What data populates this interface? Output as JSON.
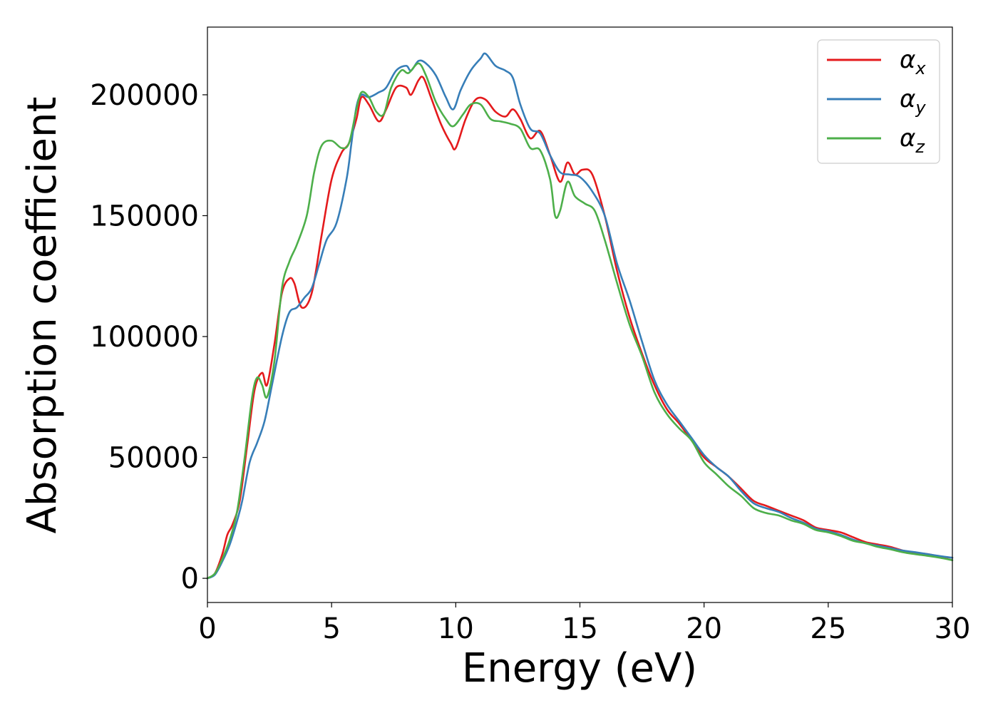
{
  "chart_data": {
    "type": "line",
    "xlabel": "Energy (eV)",
    "ylabel": "Absorption coefficient",
    "xlim": [
      0,
      30
    ],
    "ylim": [
      -10000,
      228000
    ],
    "xticks": [
      0,
      5,
      10,
      15,
      20,
      25,
      30
    ],
    "xtick_labels": [
      "0",
      "5",
      "10",
      "15",
      "20",
      "25",
      "30"
    ],
    "yticks": [
      0,
      50000,
      100000,
      150000,
      200000
    ],
    "ytick_labels": [
      "0",
      "50000",
      "100000",
      "150000",
      "200000"
    ],
    "grid": false,
    "legend_position": "top-right",
    "series": [
      {
        "name": "αx",
        "legend_base": "α",
        "legend_sub": "x",
        "color": "#e41a1c",
        "points": [
          [
            0,
            0
          ],
          [
            0.3,
            2000
          ],
          [
            0.6,
            10000
          ],
          [
            0.8,
            18000
          ],
          [
            1.0,
            22000
          ],
          [
            1.3,
            32000
          ],
          [
            1.6,
            55000
          ],
          [
            1.9,
            78000
          ],
          [
            2.2,
            85000
          ],
          [
            2.4,
            80000
          ],
          [
            2.7,
            97000
          ],
          [
            3.0,
            118000
          ],
          [
            3.3,
            124000
          ],
          [
            3.5,
            122000
          ],
          [
            3.8,
            112000
          ],
          [
            4.2,
            118000
          ],
          [
            4.6,
            142000
          ],
          [
            5.0,
            165000
          ],
          [
            5.4,
            176000
          ],
          [
            5.7,
            180000
          ],
          [
            6.0,
            190000
          ],
          [
            6.2,
            199000
          ],
          [
            6.5,
            196000
          ],
          [
            6.9,
            189000
          ],
          [
            7.2,
            194000
          ],
          [
            7.6,
            203000
          ],
          [
            8.0,
            203000
          ],
          [
            8.2,
            200000
          ],
          [
            8.5,
            206000
          ],
          [
            8.7,
            207000
          ],
          [
            9.0,
            199000
          ],
          [
            9.4,
            188000
          ],
          [
            9.8,
            180000
          ],
          [
            10.0,
            178000
          ],
          [
            10.4,
            190000
          ],
          [
            10.8,
            198000
          ],
          [
            11.2,
            198000
          ],
          [
            11.6,
            193000
          ],
          [
            12.0,
            191000
          ],
          [
            12.3,
            194000
          ],
          [
            12.6,
            190000
          ],
          [
            13.0,
            182000
          ],
          [
            13.4,
            185000
          ],
          [
            13.8,
            175000
          ],
          [
            14.2,
            164000
          ],
          [
            14.5,
            172000
          ],
          [
            14.8,
            167000
          ],
          [
            15.1,
            169000
          ],
          [
            15.5,
            167000
          ],
          [
            16.0,
            150000
          ],
          [
            16.5,
            127000
          ],
          [
            17.0,
            108000
          ],
          [
            17.5,
            93000
          ],
          [
            18.0,
            80000
          ],
          [
            18.5,
            70000
          ],
          [
            19.0,
            64000
          ],
          [
            19.5,
            57000
          ],
          [
            20.0,
            50000
          ],
          [
            20.5,
            46000
          ],
          [
            21.0,
            42000
          ],
          [
            21.5,
            37000
          ],
          [
            22.0,
            32000
          ],
          [
            22.5,
            30000
          ],
          [
            23.0,
            28000
          ],
          [
            23.5,
            26000
          ],
          [
            24.0,
            24000
          ],
          [
            24.5,
            21000
          ],
          [
            25.0,
            20000
          ],
          [
            25.5,
            19000
          ],
          [
            26.0,
            17000
          ],
          [
            26.5,
            15000
          ],
          [
            27.0,
            14000
          ],
          [
            27.5,
            13000
          ],
          [
            28.0,
            11500
          ],
          [
            28.5,
            10500
          ],
          [
            29.0,
            10000
          ],
          [
            29.5,
            9000
          ],
          [
            30.0,
            8500
          ]
        ]
      },
      {
        "name": "αy",
        "legend_base": "α",
        "legend_sub": "y",
        "color": "#377eb8",
        "points": [
          [
            0,
            0
          ],
          [
            0.3,
            1500
          ],
          [
            0.6,
            7000
          ],
          [
            0.9,
            14000
          ],
          [
            1.2,
            24000
          ],
          [
            1.4,
            32000
          ],
          [
            1.7,
            48000
          ],
          [
            2.0,
            56000
          ],
          [
            2.3,
            65000
          ],
          [
            2.6,
            80000
          ],
          [
            3.0,
            100000
          ],
          [
            3.3,
            110000
          ],
          [
            3.6,
            112000
          ],
          [
            3.9,
            116000
          ],
          [
            4.2,
            120000
          ],
          [
            4.5,
            130000
          ],
          [
            4.8,
            140000
          ],
          [
            5.2,
            147000
          ],
          [
            5.6,
            165000
          ],
          [
            5.8,
            180000
          ],
          [
            6.0,
            195000
          ],
          [
            6.2,
            200000
          ],
          [
            6.5,
            199000
          ],
          [
            6.9,
            201000
          ],
          [
            7.2,
            203000
          ],
          [
            7.6,
            210000
          ],
          [
            8.0,
            212000
          ],
          [
            8.2,
            210000
          ],
          [
            8.5,
            214000
          ],
          [
            8.8,
            213000
          ],
          [
            9.2,
            208000
          ],
          [
            9.6,
            199000
          ],
          [
            9.9,
            194000
          ],
          [
            10.2,
            202000
          ],
          [
            10.6,
            210000
          ],
          [
            11.0,
            215000
          ],
          [
            11.2,
            217000
          ],
          [
            11.6,
            212000
          ],
          [
            12.0,
            210000
          ],
          [
            12.3,
            207000
          ],
          [
            12.6,
            196000
          ],
          [
            13.0,
            186000
          ],
          [
            13.4,
            184000
          ],
          [
            13.8,
            175000
          ],
          [
            14.2,
            168000
          ],
          [
            14.6,
            167000
          ],
          [
            15.0,
            166000
          ],
          [
            15.5,
            160000
          ],
          [
            16.0,
            150000
          ],
          [
            16.5,
            130000
          ],
          [
            17.0,
            115000
          ],
          [
            17.5,
            98000
          ],
          [
            18.0,
            82000
          ],
          [
            18.5,
            72000
          ],
          [
            19.0,
            65000
          ],
          [
            19.5,
            58000
          ],
          [
            20.0,
            51000
          ],
          [
            20.5,
            46000
          ],
          [
            21.0,
            42000
          ],
          [
            21.5,
            36000
          ],
          [
            22.0,
            31000
          ],
          [
            22.5,
            29000
          ],
          [
            23.0,
            27500
          ],
          [
            23.5,
            25000
          ],
          [
            24.0,
            23000
          ],
          [
            24.5,
            20500
          ],
          [
            25.0,
            19500
          ],
          [
            25.5,
            18000
          ],
          [
            26.0,
            16000
          ],
          [
            26.5,
            14500
          ],
          [
            27.0,
            13500
          ],
          [
            27.5,
            12500
          ],
          [
            28.0,
            11500
          ],
          [
            28.5,
            10800
          ],
          [
            29.0,
            10000
          ],
          [
            29.5,
            9200
          ],
          [
            30.0,
            8500
          ]
        ]
      },
      {
        "name": "αz",
        "legend_base": "α",
        "legend_sub": "z",
        "color": "#4daf4a",
        "points": [
          [
            0,
            0
          ],
          [
            0.3,
            2000
          ],
          [
            0.6,
            8000
          ],
          [
            0.9,
            16000
          ],
          [
            1.2,
            28000
          ],
          [
            1.5,
            50000
          ],
          [
            1.8,
            75000
          ],
          [
            2.0,
            83000
          ],
          [
            2.2,
            80000
          ],
          [
            2.4,
            75000
          ],
          [
            2.7,
            90000
          ],
          [
            3.0,
            120000
          ],
          [
            3.3,
            131000
          ],
          [
            3.6,
            138000
          ],
          [
            4.0,
            150000
          ],
          [
            4.3,
            168000
          ],
          [
            4.6,
            179000
          ],
          [
            5.0,
            181000
          ],
          [
            5.4,
            178000
          ],
          [
            5.7,
            180000
          ],
          [
            6.0,
            194000
          ],
          [
            6.2,
            201000
          ],
          [
            6.5,
            199000
          ],
          [
            6.8,
            193000
          ],
          [
            7.1,
            192000
          ],
          [
            7.4,
            203000
          ],
          [
            7.8,
            210000
          ],
          [
            8.1,
            209000
          ],
          [
            8.5,
            213000
          ],
          [
            8.8,
            208000
          ],
          [
            9.2,
            197000
          ],
          [
            9.6,
            190000
          ],
          [
            9.9,
            187000
          ],
          [
            10.3,
            192000
          ],
          [
            10.6,
            196000
          ],
          [
            11.0,
            196000
          ],
          [
            11.4,
            190000
          ],
          [
            11.8,
            189000
          ],
          [
            12.2,
            188000
          ],
          [
            12.6,
            186000
          ],
          [
            13.0,
            178000
          ],
          [
            13.4,
            177000
          ],
          [
            13.8,
            165000
          ],
          [
            14.0,
            150000
          ],
          [
            14.2,
            152000
          ],
          [
            14.5,
            164000
          ],
          [
            14.8,
            158000
          ],
          [
            15.2,
            155000
          ],
          [
            15.6,
            152000
          ],
          [
            16.0,
            140000
          ],
          [
            16.5,
            122000
          ],
          [
            17.0,
            105000
          ],
          [
            17.5,
            92000
          ],
          [
            18.0,
            77000
          ],
          [
            18.5,
            68000
          ],
          [
            19.0,
            62000
          ],
          [
            19.5,
            57000
          ],
          [
            20.0,
            48000
          ],
          [
            20.5,
            43000
          ],
          [
            21.0,
            38000
          ],
          [
            21.5,
            34000
          ],
          [
            22.0,
            29000
          ],
          [
            22.5,
            27000
          ],
          [
            23.0,
            26000
          ],
          [
            23.5,
            24000
          ],
          [
            24.0,
            22500
          ],
          [
            24.5,
            20000
          ],
          [
            25.0,
            19000
          ],
          [
            25.5,
            17500
          ],
          [
            26.0,
            15500
          ],
          [
            26.5,
            14500
          ],
          [
            27.0,
            13000
          ],
          [
            27.5,
            12000
          ],
          [
            28.0,
            10800
          ],
          [
            28.5,
            10000
          ],
          [
            29.0,
            9300
          ],
          [
            29.5,
            8500
          ],
          [
            30.0,
            7500
          ]
        ]
      }
    ]
  }
}
